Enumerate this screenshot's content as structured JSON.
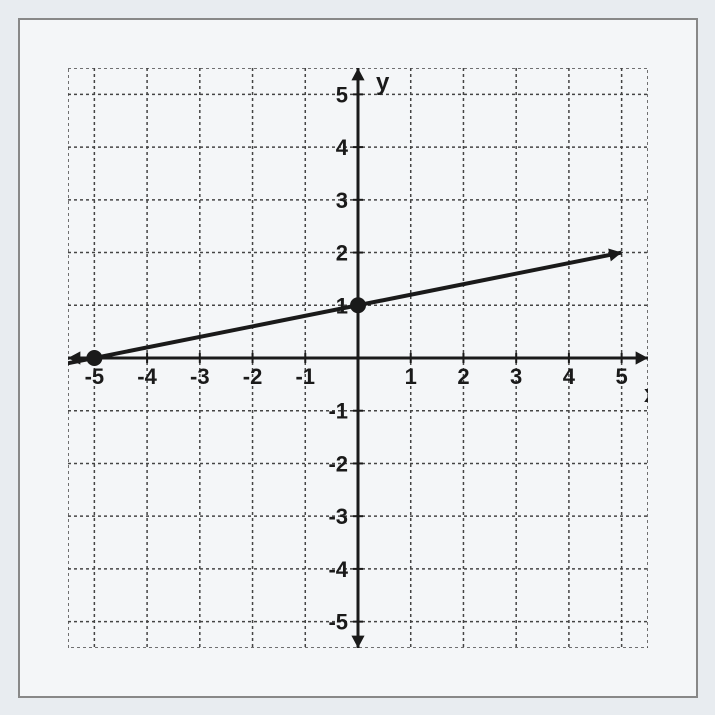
{
  "chart": {
    "type": "line",
    "xlim": [
      -5.5,
      5.5
    ],
    "ylim": [
      -5.5,
      5.5
    ],
    "xtick_step": 1,
    "ytick_step": 1,
    "x_ticks": [
      -5,
      -4,
      -3,
      -2,
      -1,
      1,
      2,
      3,
      4,
      5
    ],
    "y_ticks": [
      5,
      4,
      3,
      2,
      1,
      -1,
      -2,
      -3,
      -4,
      -5
    ],
    "x_axis_label": "x",
    "y_axis_label": "y",
    "background_color": "#f4f6f8",
    "grid_color": "#444444",
    "grid_dash": [
      3,
      3
    ],
    "axis_color": "#1a1a1a",
    "axis_width": 3,
    "axis_label_fontsize": 24,
    "tick_label_fontsize": 22,
    "viewport_size": 580,
    "line": {
      "points": [
        [
          -5,
          0
        ],
        [
          0,
          1
        ]
      ],
      "extend_start": [
        -5.8,
        -0.16
      ],
      "extend_end": [
        5,
        2
      ],
      "color": "#1a1a1a",
      "width": 4
    },
    "marked_points": [
      {
        "x": -5,
        "y": 0,
        "radius": 8,
        "color": "#1a1a1a"
      },
      {
        "x": 0,
        "y": 1,
        "radius": 8,
        "color": "#1a1a1a"
      }
    ]
  }
}
